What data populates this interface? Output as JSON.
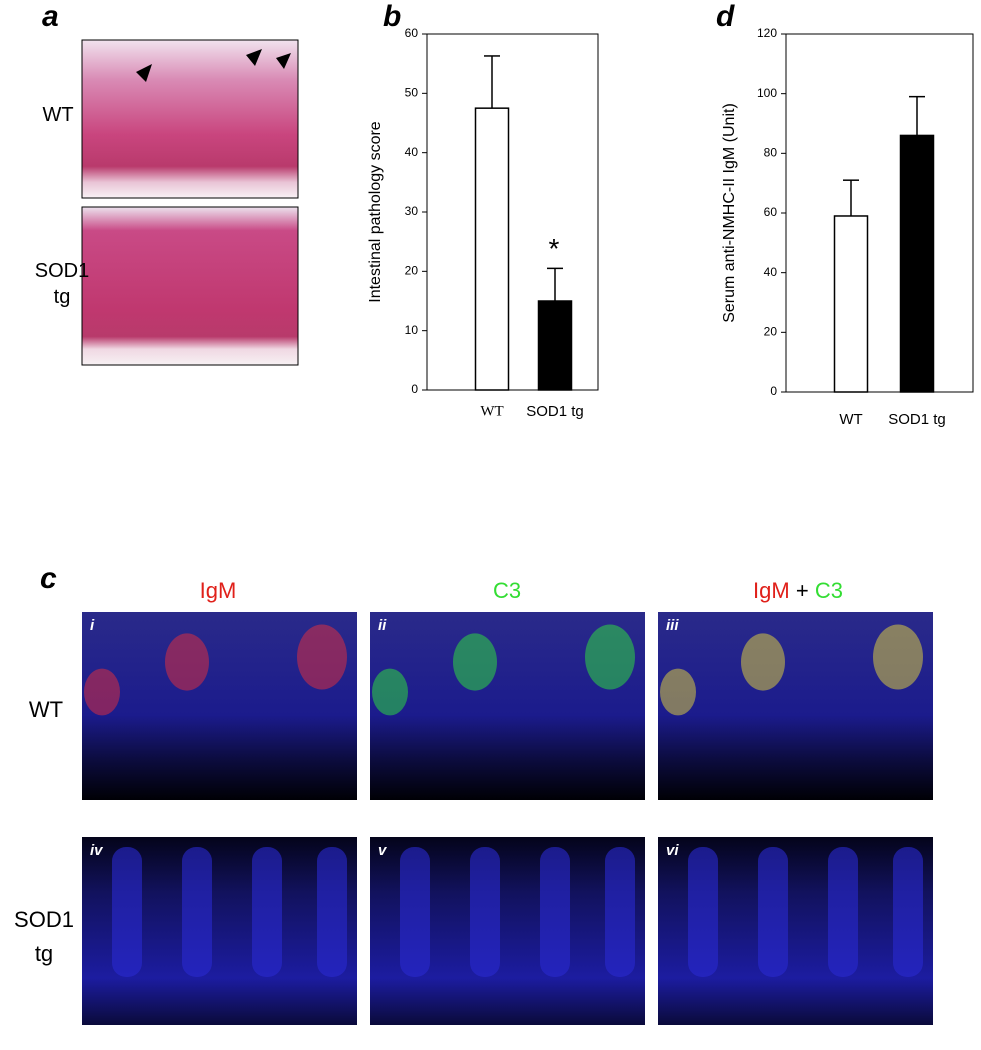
{
  "panel_a": {
    "label": "a",
    "rows": [
      "WT",
      "SOD1 tg"
    ]
  },
  "chart_data": [
    {
      "type": "bar",
      "label": "b",
      "ylabel": "Intestinal pathology score",
      "categories": [
        "WT",
        "SOD1 tg"
      ],
      "values": [
        47.5,
        15
      ],
      "errors": [
        8.8,
        5.5
      ],
      "colors": [
        "#ffffff",
        "#000000"
      ],
      "ylim": [
        0,
        60
      ],
      "yticks": [
        0,
        10,
        20,
        30,
        40,
        50,
        60
      ],
      "annotation": "*"
    },
    {
      "type": "bar",
      "label": "d",
      "ylabel": "Serum anti-NMHC-II IgM (Unit)",
      "categories": [
        "WT",
        "SOD1 tg"
      ],
      "values": [
        59,
        86
      ],
      "errors": [
        12,
        13
      ],
      "colors": [
        "#ffffff",
        "#000000"
      ],
      "ylim": [
        0,
        120
      ],
      "yticks": [
        0,
        20,
        40,
        60,
        80,
        100,
        120
      ]
    }
  ],
  "panel_c": {
    "label": "c",
    "columns": [
      [
        "IgM"
      ],
      [
        "C3"
      ],
      [
        "IgM",
        "+",
        "C3"
      ]
    ],
    "rows": [
      "WT",
      "SOD1 tg"
    ],
    "images": [
      "i",
      "ii",
      "iii",
      "iv",
      "v",
      "vi"
    ]
  }
}
